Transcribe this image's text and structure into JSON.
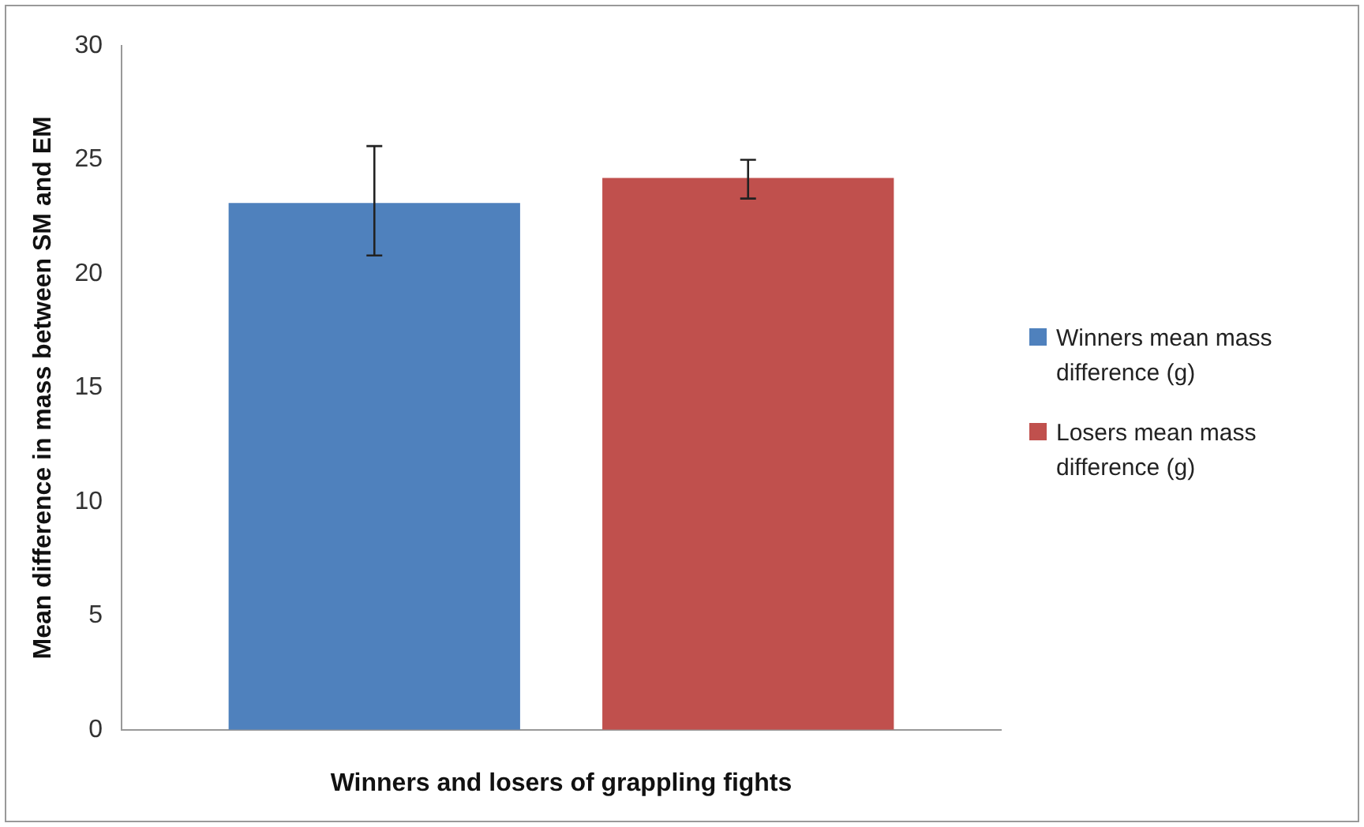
{
  "chart_data": {
    "type": "bar",
    "xlabel": "Winners and losers of grappling fights",
    "ylabel": "Mean difference in mass between SM and EM",
    "categories": [
      null
    ],
    "series": [
      {
        "name": "Winners mean mass difference (g)",
        "color": "#4f81bd",
        "values": [
          23.1
        ],
        "errors": [
          [
            20.8,
            25.6
          ]
        ]
      },
      {
        "name": "Losers mean mass difference (g)",
        "color": "#c0504d",
        "values": [
          24.2
        ],
        "errors": [
          [
            23.3,
            25.0
          ]
        ]
      }
    ],
    "ylim": [
      0,
      30
    ],
    "yticks": [
      0,
      5,
      10,
      15,
      20,
      25,
      30
    ],
    "grid": false,
    "legend": "right"
  }
}
